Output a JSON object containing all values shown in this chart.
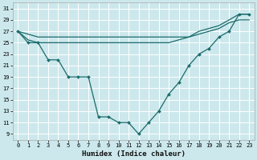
{
  "xlabel": "Humidex (Indice chaleur)",
  "bg_color": "#cce8ec",
  "line_color": "#1a6b6b",
  "grid_color": "#ffffff",
  "xlim": [
    -0.5,
    23.5
  ],
  "ylim": [
    8,
    32
  ],
  "xticks": [
    0,
    1,
    2,
    3,
    4,
    5,
    6,
    7,
    8,
    9,
    10,
    11,
    12,
    13,
    14,
    15,
    16,
    17,
    18,
    19,
    20,
    21,
    22,
    23
  ],
  "yticks": [
    9,
    11,
    13,
    15,
    17,
    19,
    21,
    23,
    25,
    27,
    29,
    31
  ],
  "line1_x": [
    0,
    1,
    2,
    3,
    4,
    5,
    6,
    7,
    8,
    9,
    10,
    11,
    12,
    13,
    14,
    15,
    16,
    17,
    18,
    19,
    20,
    21,
    22,
    23
  ],
  "line1_y": [
    27,
    25,
    25,
    22,
    22,
    19,
    19,
    19,
    12,
    12,
    11,
    11,
    9,
    11,
    13,
    16,
    18,
    21,
    23,
    24,
    26,
    27,
    30,
    30
  ],
  "line2_x": [
    0,
    1,
    2,
    3,
    4,
    5,
    6,
    7,
    8,
    9,
    10,
    11,
    12,
    13,
    14,
    15,
    16,
    17,
    18,
    19,
    20,
    21,
    22,
    23
  ],
  "line2_y": [
    27,
    26.5,
    26,
    26,
    26,
    26,
    26,
    26,
    26,
    26,
    26,
    26,
    26,
    26,
    26,
    26,
    26,
    26,
    27,
    27.5,
    28,
    29,
    30,
    30
  ],
  "line3_x": [
    0,
    1,
    2,
    3,
    4,
    5,
    6,
    7,
    8,
    9,
    10,
    11,
    12,
    13,
    14,
    15,
    16,
    17,
    18,
    19,
    20,
    21,
    22,
    23
  ],
  "line3_y": [
    27,
    25.5,
    25,
    25,
    25,
    25,
    25,
    25,
    25,
    25,
    25,
    25,
    25,
    25,
    25,
    25,
    25.5,
    26,
    26.5,
    27,
    27.5,
    28.5,
    29,
    29
  ],
  "xlabel_fontsize": 6.5,
  "tick_fontsize": 5.0
}
